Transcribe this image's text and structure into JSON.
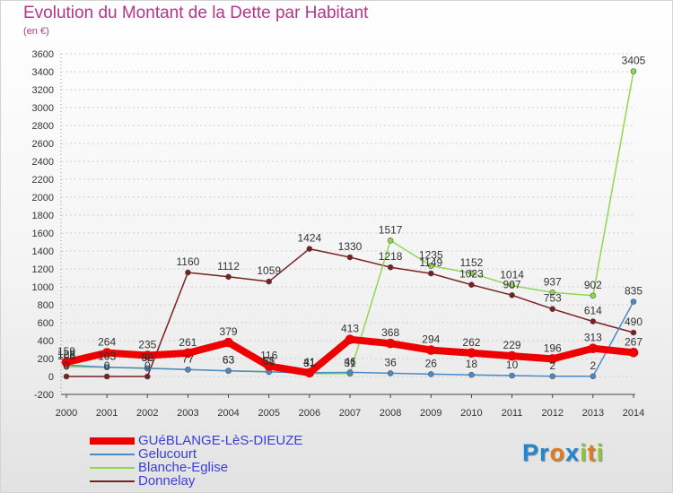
{
  "title": "Evolution du Montant de la Dette par Habitant",
  "unit": "(en €)",
  "logo": [
    "P",
    "r",
    "o",
    "x",
    "i",
    "t",
    "i"
  ],
  "logo_colors": [
    "#1e88d2",
    "#1e88d2",
    "#e07b20",
    "#1e88d2",
    "#8cc63f",
    "#e07b20",
    "#8cc63f"
  ],
  "chart_data": {
    "type": "line",
    "x": [
      "2000",
      "2001",
      "2002",
      "2003",
      "2004",
      "2005",
      "2006",
      "2007",
      "2008",
      "2009",
      "2010",
      "2011",
      "2012",
      "2013",
      "2014"
    ],
    "ylim": [
      -200,
      3600
    ],
    "yticks": [
      -200,
      0,
      200,
      400,
      600,
      800,
      1000,
      1200,
      1400,
      1600,
      1800,
      2000,
      2200,
      2400,
      2600,
      2800,
      3000,
      3200,
      3400,
      3600
    ],
    "grid": "horizontal",
    "legend_position": "bottom-left",
    "series": [
      {
        "name": "GUéBLANGE-LèS-DIEUZE",
        "color": "#ee0000",
        "width": 8,
        "values": [
          159,
          264,
          235,
          261,
          379,
          116,
          41,
          413,
          368,
          294,
          262,
          229,
          196,
          313,
          267
        ]
      },
      {
        "name": "Gelucourt",
        "color": "#4a8ac9",
        "width": 1.5,
        "values": [
          128,
          103,
          92,
          77,
          63,
          51,
          41,
          46,
          36,
          26,
          18,
          10,
          2,
          2,
          835
        ]
      },
      {
        "name": "Blanche-Eglise",
        "color": "#8fd84f",
        "width": 1.5,
        "values": [
          108,
          103,
          89,
          77,
          63,
          55,
          31,
          31,
          1517,
          1235,
          1152,
          1014,
          937,
          902,
          3405
        ]
      },
      {
        "name": "Donnelay",
        "color": "#7a1f1f",
        "width": 1.5,
        "values": [
          0,
          0,
          0,
          1160,
          1112,
          1059,
          1424,
          1330,
          1218,
          1149,
          1023,
          907,
          753,
          614,
          490
        ]
      }
    ]
  }
}
